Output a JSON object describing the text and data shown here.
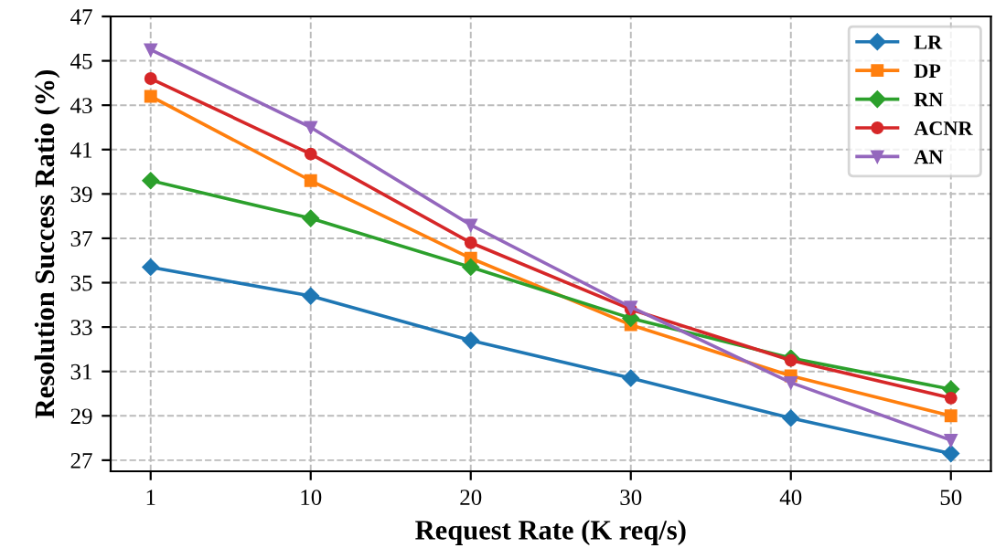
{
  "chart_data": {
    "type": "line",
    "xlabel": "Request Rate (K req/s)",
    "ylabel": "Resolution Success Ratio (%)",
    "categories": [
      "1",
      "10",
      "20",
      "30",
      "40",
      "50"
    ],
    "series": [
      {
        "name": "LR",
        "color": "#1f77b4",
        "marker": "diamond",
        "values": [
          35.7,
          34.4,
          32.4,
          30.7,
          28.9,
          27.3
        ]
      },
      {
        "name": "DP",
        "color": "#ff7f0e",
        "marker": "square",
        "values": [
          43.4,
          39.6,
          36.1,
          33.1,
          30.8,
          29.0
        ]
      },
      {
        "name": "RN",
        "color": "#2ca02c",
        "marker": "diamond",
        "values": [
          39.6,
          37.9,
          35.7,
          33.4,
          31.6,
          30.2
        ]
      },
      {
        "name": "ACNR",
        "color": "#d62728",
        "marker": "circle",
        "values": [
          44.2,
          40.8,
          36.8,
          33.8,
          31.5,
          29.8
        ]
      },
      {
        "name": "AN",
        "color": "#9467bd",
        "marker": "triangle",
        "values": [
          45.5,
          42.0,
          37.6,
          33.9,
          30.5,
          27.9
        ]
      }
    ],
    "ylim": [
      26.5,
      47
    ],
    "yticks": [
      27,
      29,
      31,
      33,
      35,
      37,
      39,
      41,
      43,
      45,
      47
    ],
    "grid": true,
    "legend": "top right",
    "line_style": "solid"
  }
}
